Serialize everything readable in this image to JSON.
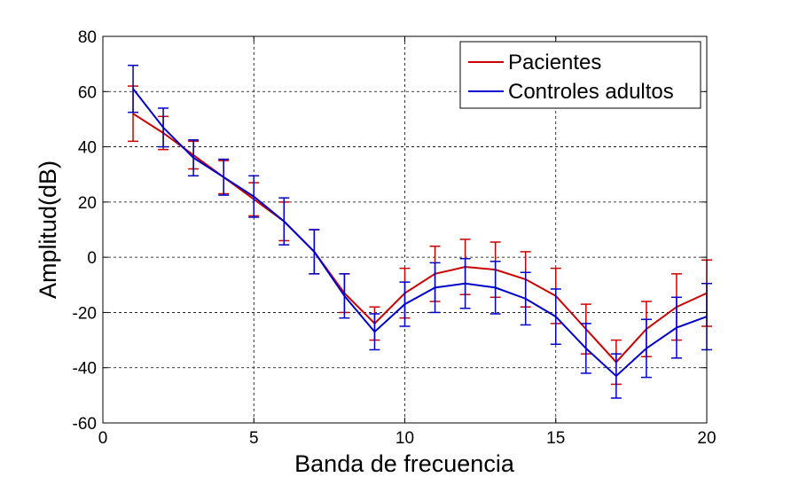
{
  "chart_data": {
    "type": "line",
    "title": "",
    "xlabel": "Banda de frecuencia",
    "ylabel": "Amplitud(dB)",
    "xlim": [
      0,
      20
    ],
    "ylim": [
      -60,
      80
    ],
    "xticks": [
      0,
      5,
      10,
      15,
      20
    ],
    "yticks": [
      -60,
      -40,
      -20,
      0,
      20,
      40,
      60,
      80
    ],
    "grid": true,
    "legend_position": "top-right",
    "x": [
      1,
      2,
      3,
      4,
      5,
      6,
      7,
      8,
      9,
      10,
      11,
      12,
      13,
      14,
      15,
      16,
      17,
      18,
      19,
      20
    ],
    "series": [
      {
        "name": "Pacientes",
        "color": "#cc0000",
        "values": [
          52,
          45,
          37,
          29,
          21,
          13,
          2,
          -13,
          -24,
          -13,
          -6,
          -3.5,
          -4.5,
          -8,
          -14,
          -26,
          -38,
          -26,
          -18,
          -13
        ],
        "err": [
          10,
          6,
          5,
          6,
          6,
          7,
          8,
          7,
          6,
          9,
          10,
          10,
          10,
          10,
          10,
          9,
          8,
          10,
          12,
          12
        ]
      },
      {
        "name": "Controles adultos",
        "color": "#0000cc",
        "values": [
          61,
          47,
          36,
          29,
          22,
          13,
          2,
          -14,
          -27,
          -17,
          -11,
          -9.5,
          -11,
          -15,
          -21.5,
          -33,
          -43,
          -33,
          -25.5,
          -21.5
        ],
        "err": [
          8.5,
          7,
          6.5,
          6.5,
          7.5,
          8.5,
          8,
          8,
          6.5,
          8,
          9,
          9,
          9.5,
          9.5,
          10,
          9,
          8,
          10.5,
          11,
          12
        ]
      }
    ]
  }
}
